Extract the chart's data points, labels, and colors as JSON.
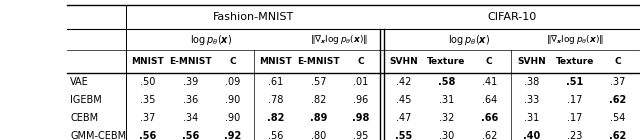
{
  "rows": [
    "VAE",
    "IGEBM",
    "CEBM",
    "GMM-CEBM"
  ],
  "col_labels": [
    "MNIST",
    "E-MNIST",
    "C",
    "MNIST",
    "E-MNIST",
    "C",
    "SVHN",
    "Texture",
    "C",
    "SVHN",
    "Texture",
    "C"
  ],
  "data": [
    [
      ".50",
      ".39",
      ".09",
      ".61",
      ".57",
      ".01",
      ".42",
      ".58",
      ".41",
      ".38",
      ".51",
      ".37"
    ],
    [
      ".35",
      ".36",
      ".90",
      ".78",
      ".82",
      ".96",
      ".45",
      ".31",
      ".64",
      ".33",
      ".17",
      ".62"
    ],
    [
      ".37",
      ".34",
      ".90",
      ".82",
      ".89",
      ".98",
      ".47",
      ".32",
      ".66",
      ".31",
      ".17",
      ".54"
    ],
    [
      ".56",
      ".56",
      ".92",
      ".56",
      ".80",
      ".95",
      ".55",
      ".30",
      ".62",
      ".40",
      ".23",
      ".62"
    ]
  ],
  "bold": [
    [
      false,
      false,
      false,
      false,
      false,
      false,
      false,
      true,
      false,
      false,
      true,
      false
    ],
    [
      false,
      false,
      false,
      false,
      false,
      false,
      false,
      false,
      false,
      false,
      false,
      true
    ],
    [
      false,
      false,
      false,
      true,
      true,
      true,
      false,
      false,
      true,
      false,
      false,
      false
    ],
    [
      true,
      true,
      true,
      false,
      false,
      false,
      true,
      false,
      false,
      true,
      false,
      true
    ]
  ]
}
